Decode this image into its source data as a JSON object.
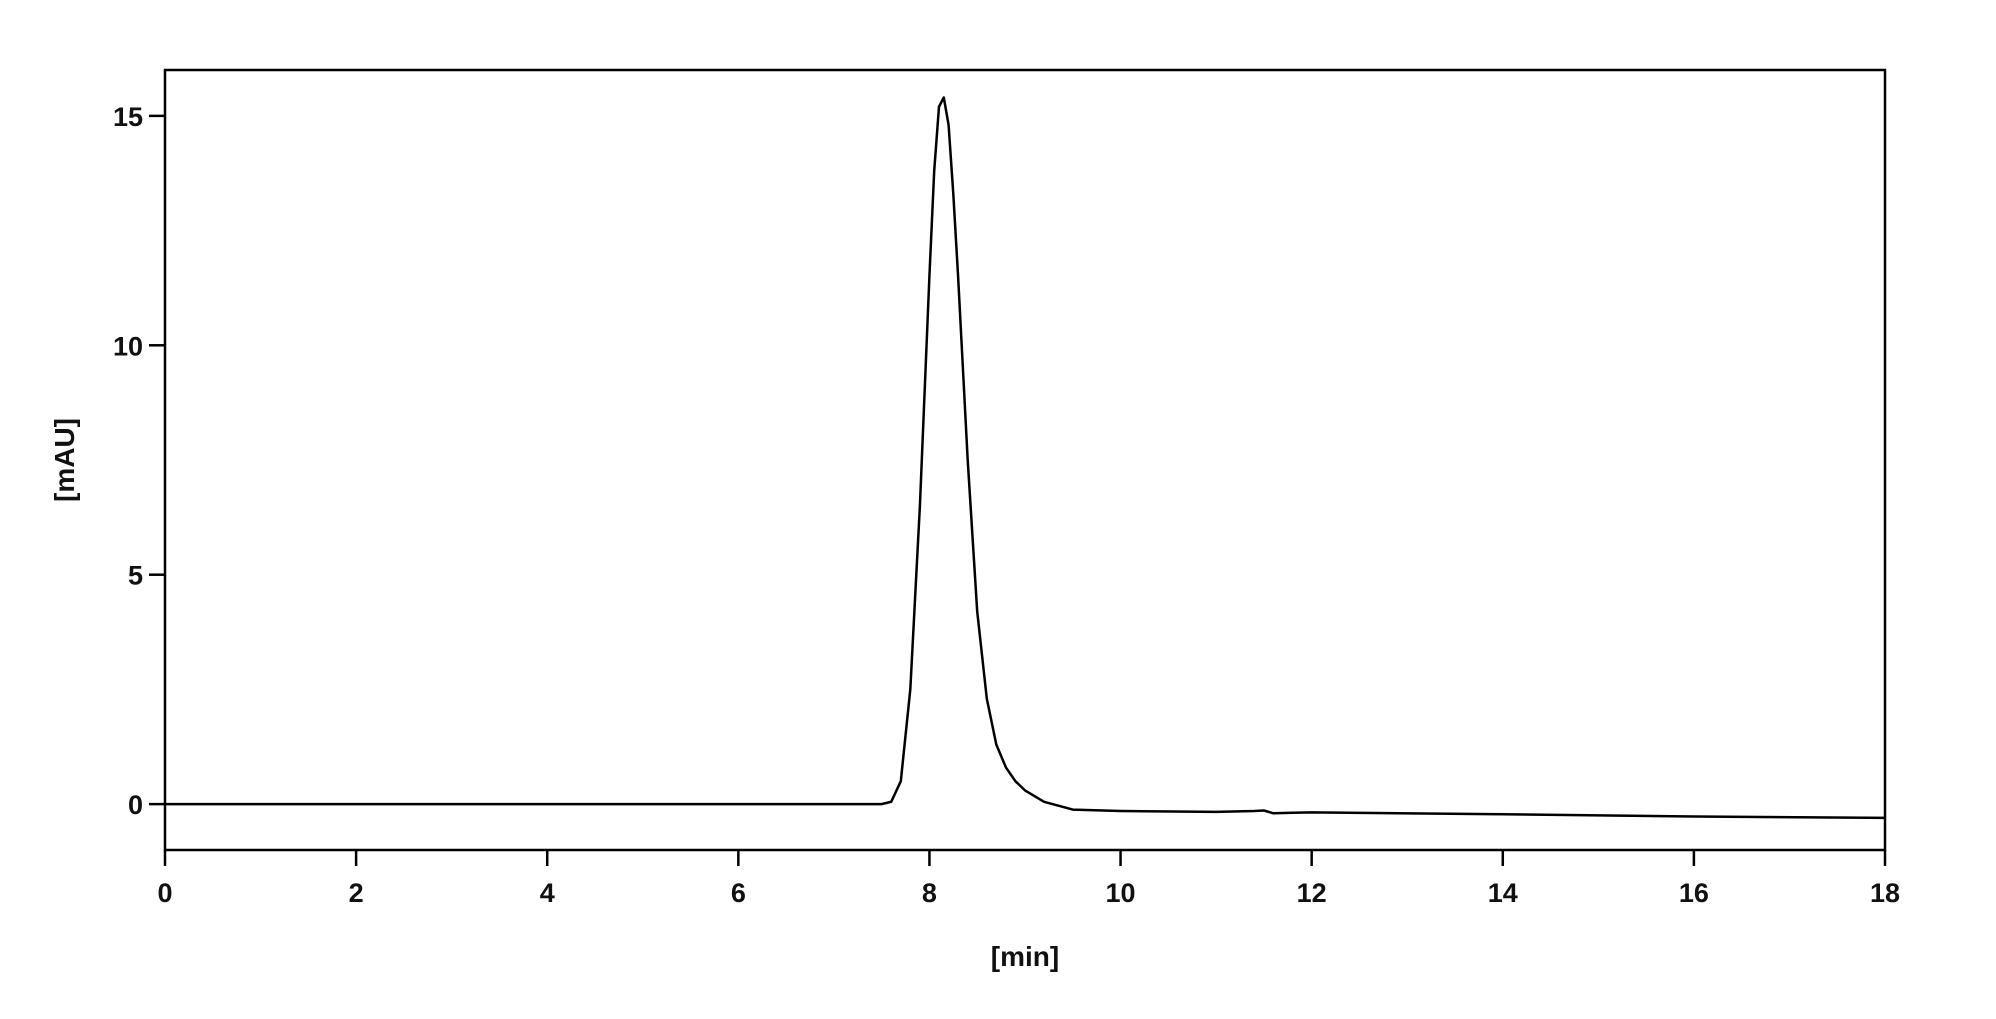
{
  "chart_data": {
    "type": "line",
    "title": "",
    "xlabel": "[min]",
    "ylabel": "[mAU]",
    "xlim": [
      0,
      18
    ],
    "ylim": [
      -1,
      16
    ],
    "xticks": [
      0,
      2,
      4,
      6,
      8,
      10,
      12,
      14,
      16,
      18
    ],
    "yticks": [
      0,
      5,
      10,
      15
    ],
    "grid": false,
    "legend": "none",
    "line_color": "#000000",
    "series": [
      {
        "x": [
          0,
          7.5,
          7.6,
          7.7,
          7.8,
          7.9,
          8.0,
          8.05,
          8.1,
          8.15,
          8.2,
          8.25,
          8.3,
          8.4,
          8.5,
          8.6,
          8.7,
          8.8,
          8.9,
          9.0,
          9.2,
          9.5,
          10,
          11,
          11.4,
          11.5,
          11.6,
          11.8,
          12,
          14,
          16,
          18
        ],
        "y": [
          0,
          0,
          0.05,
          0.5,
          2.5,
          6.5,
          11.5,
          13.8,
          15.2,
          15.4,
          14.8,
          13.3,
          11.5,
          7.5,
          4.2,
          2.3,
          1.3,
          0.8,
          0.5,
          0.3,
          0.05,
          -0.12,
          -0.15,
          -0.17,
          -0.15,
          -0.14,
          -0.2,
          -0.19,
          -0.18,
          -0.22,
          -0.27,
          -0.3
        ]
      }
    ]
  }
}
